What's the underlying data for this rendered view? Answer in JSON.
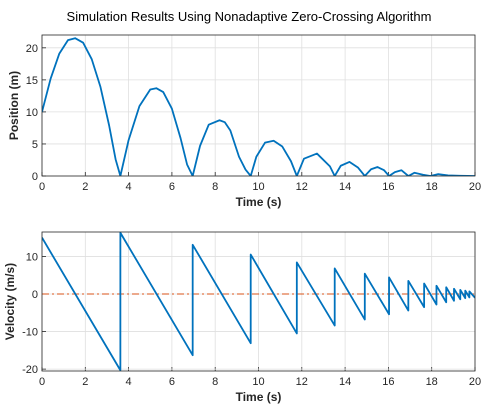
{
  "chart_data": [
    {
      "type": "line",
      "title": "Simulation Results Using Nonadaptive Zero-Crossing Algorithm",
      "xlabel": "Time (s)",
      "ylabel": "Position (m)",
      "xlim": [
        0,
        20
      ],
      "ylim": [
        0,
        22
      ],
      "xticks": [
        "0",
        "2",
        "4",
        "6",
        "8",
        "10",
        "12",
        "14",
        "16",
        "18",
        "20"
      ],
      "yticks": [
        "0",
        "5",
        "10",
        "15",
        "20"
      ],
      "grid": true,
      "series": [
        {
          "color": "#0072bd",
          "x": [
            0,
            0.4,
            0.8,
            1.2,
            1.53,
            1.9,
            2.3,
            2.7,
            3.1,
            3.4,
            3.62,
            4.0,
            4.5,
            5.0,
            5.28,
            5.6,
            6.0,
            6.4,
            6.7,
            6.96,
            7.3,
            7.7,
            8.2,
            8.44,
            8.7,
            9.1,
            9.4,
            9.64,
            9.9,
            10.3,
            10.7,
            11.1,
            11.5,
            11.77,
            12.1,
            12.7,
            13.3,
            13.52,
            13.8,
            14.2,
            14.6,
            14.91,
            15.2,
            15.5,
            15.8,
            16.03,
            16.3,
            16.6,
            16.92,
            17.2,
            17.6,
            17.94,
            18.3,
            18.75,
            19.3,
            20.0
          ],
          "y": [
            10,
            15.2,
            19.1,
            21.2,
            21.5,
            20.8,
            18.2,
            13.9,
            7.9,
            2.6,
            0,
            5.6,
            10.9,
            13.5,
            13.7,
            13.1,
            10.5,
            5.9,
            1.8,
            0,
            4.7,
            8.0,
            8.7,
            8.4,
            7.1,
            3.0,
            1.0,
            0,
            3.0,
            5.2,
            5.5,
            4.6,
            2.3,
            0,
            2.7,
            3.5,
            1.5,
            0,
            1.6,
            2.2,
            1.3,
            0,
            1.05,
            1.4,
            0.9,
            0,
            0.6,
            0.9,
            0,
            0.5,
            0.2,
            0,
            0.3,
            0.1,
            0.04,
            0
          ]
        }
      ]
    },
    {
      "type": "line",
      "xlabel": "Time (s)",
      "ylabel": "Velocity (m/s)",
      "xlim": [
        0,
        20
      ],
      "ylim": [
        -20.5,
        16.5
      ],
      "xticks": [
        "0",
        "2",
        "4",
        "6",
        "8",
        "10",
        "12",
        "14",
        "16",
        "18",
        "20"
      ],
      "yticks": [
        "-20",
        "-10",
        "0",
        "10"
      ],
      "grid": true,
      "series": [
        {
          "color": "#0072bd",
          "x": [
            0,
            3.62,
            3.62,
            6.96,
            6.96,
            9.64,
            9.64,
            11.77,
            11.77,
            13.52,
            13.52,
            14.91,
            14.91,
            16.03,
            16.03,
            16.92,
            16.92,
            17.65,
            17.65,
            18.22,
            18.22,
            18.67,
            18.67,
            19.03,
            19.03,
            19.32,
            19.32,
            19.55,
            19.55,
            19.74,
            19.74,
            20.0
          ],
          "y": [
            15,
            -20.3,
            16.3,
            -16.3,
            13.1,
            -13.1,
            10.5,
            -10.5,
            8.4,
            -8.4,
            6.8,
            -6.8,
            5.4,
            -5.4,
            4.4,
            -4.4,
            3.5,
            -3.5,
            2.8,
            -2.8,
            2.2,
            -2.2,
            1.8,
            -1.8,
            1.4,
            -1.4,
            1.1,
            -1.1,
            0.9,
            -0.9,
            0.7,
            -1.0
          ]
        }
      ],
      "reference_line": {
        "y": 0,
        "color": "#d95319",
        "style": "dash-dot"
      }
    }
  ]
}
